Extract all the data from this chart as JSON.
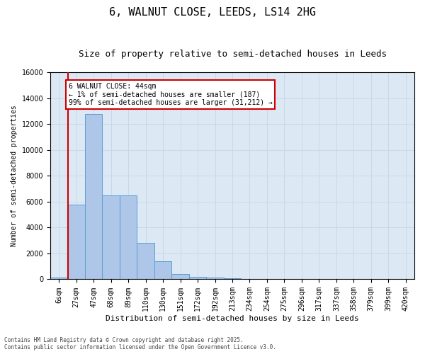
{
  "title_line1": "6, WALNUT CLOSE, LEEDS, LS14 2HG",
  "title_line2": "Size of property relative to semi-detached houses in Leeds",
  "xlabel": "Distribution of semi-detached houses by size in Leeds",
  "ylabel": "Number of semi-detached properties",
  "annotation_title": "6 WALNUT CLOSE: 44sqm",
  "annotation_line1": "← 1% of semi-detached houses are smaller (187)",
  "annotation_line2": "99% of semi-detached houses are larger (31,212) →",
  "categories": [
    "6sqm",
    "27sqm",
    "47sqm",
    "68sqm",
    "89sqm",
    "110sqm",
    "130sqm",
    "151sqm",
    "172sqm",
    "192sqm",
    "213sqm",
    "234sqm",
    "254sqm",
    "275sqm",
    "296sqm",
    "317sqm",
    "337sqm",
    "358sqm",
    "379sqm",
    "399sqm",
    "420sqm"
  ],
  "values": [
    150,
    5800,
    12800,
    6500,
    6500,
    2800,
    1400,
    400,
    200,
    150,
    80,
    20,
    10,
    5,
    3,
    2,
    1,
    1,
    0,
    0,
    0
  ],
  "bar_color": "#aec6e8",
  "bar_edge_color": "#5a9fd4",
  "marker_color": "#cc0000",
  "ylim": [
    0,
    16000
  ],
  "yticks": [
    0,
    2000,
    4000,
    6000,
    8000,
    10000,
    12000,
    14000,
    16000
  ],
  "grid_color": "#c8d8e8",
  "background_color": "#dce9f5",
  "fig_background": "#ffffff",
  "footer_line1": "Contains HM Land Registry data © Crown copyright and database right 2025.",
  "footer_line2": "Contains public sector information licensed under the Open Government Licence v3.0.",
  "annotation_box_color": "#cc0000",
  "title_fontsize": 11,
  "subtitle_fontsize": 9,
  "tick_fontsize": 7,
  "xlabel_fontsize": 8,
  "ylabel_fontsize": 7,
  "annotation_fontsize": 7,
  "footer_fontsize": 5.5
}
